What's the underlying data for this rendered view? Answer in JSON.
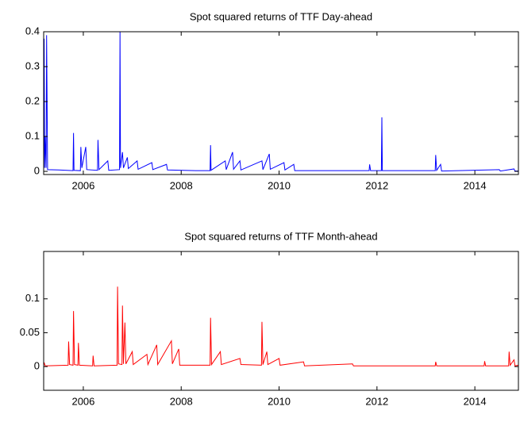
{
  "chart_data": [
    {
      "type": "line",
      "title": "Spot squared returns of TTF Day-ahead",
      "xlim": [
        2005.19,
        2014.89
      ],
      "xticks": [
        2006,
        2008,
        2010,
        2012,
        2014
      ],
      "ylim": [
        -0.009,
        0.4
      ],
      "yticks": [
        0,
        0.1,
        0.2,
        0.3,
        0.4
      ],
      "series": [
        {
          "color": "#0000ff",
          "x": [
            2005.19,
            2005.2,
            2005.21,
            2005.22,
            2005.24,
            2005.25,
            2005.27,
            2005.5,
            2005.79,
            2005.8,
            2005.81,
            2005.94,
            2005.95,
            2005.97,
            2006.05,
            2006.07,
            2006.29,
            2006.3,
            2006.32,
            2006.5,
            2006.52,
            2006.74,
            2006.75,
            2006.76,
            2006.8,
            2006.82,
            2006.9,
            2006.92,
            2007.1,
            2007.12,
            2007.4,
            2007.42,
            2007.7,
            2007.72,
            2008.3,
            2008.59,
            2008.6,
            2008.61,
            2008.9,
            2008.92,
            2009.05,
            2009.07,
            2009.2,
            2009.22,
            2009.65,
            2009.67,
            2009.8,
            2009.82,
            2010.1,
            2010.12,
            2010.3,
            2010.32,
            2011.84,
            2011.85,
            2011.87,
            2012.09,
            2012.1,
            2012.11,
            2013.19,
            2013.2,
            2013.22,
            2013.3,
            2013.32,
            2014.5,
            2014.52,
            2014.8,
            2014.82,
            2014.89
          ],
          "values": [
            0.002,
            0.38,
            0.01,
            0.1,
            0.01,
            0.39,
            0.005,
            0.004,
            0.002,
            0.11,
            0.003,
            0.002,
            0.07,
            0.01,
            0.07,
            0.005,
            0.003,
            0.09,
            0.005,
            0.03,
            0.003,
            0.005,
            0.4,
            0.01,
            0.055,
            0.01,
            0.04,
            0.008,
            0.03,
            0.006,
            0.025,
            0.005,
            0.02,
            0.004,
            0.002,
            0.002,
            0.075,
            0.003,
            0.03,
            0.005,
            0.055,
            0.006,
            0.03,
            0.004,
            0.03,
            0.005,
            0.05,
            0.006,
            0.025,
            0.004,
            0.02,
            0.002,
            0.002,
            0.02,
            0.002,
            0.002,
            0.155,
            0.002,
            0.002,
            0.047,
            0.003,
            0.02,
            0.001,
            0.005,
            0.001,
            0.007,
            0.001,
            0.001
          ]
        }
      ]
    },
    {
      "type": "line",
      "title": "Spot squared returns of TTF Month-ahead",
      "xlim": [
        2005.19,
        2014.89
      ],
      "xticks": [
        2006,
        2008,
        2010,
        2012,
        2014
      ],
      "ylim": [
        -0.035,
        0.17
      ],
      "yticks": [
        0,
        0.05,
        0.1
      ],
      "series": [
        {
          "color": "#ff0000",
          "x": [
            2005.19,
            2005.2,
            2005.22,
            2005.69,
            2005.7,
            2005.72,
            2005.79,
            2005.8,
            2005.82,
            2005.89,
            2005.9,
            2005.92,
            2006.19,
            2006.2,
            2006.22,
            2006.69,
            2006.7,
            2006.72,
            2006.79,
            2006.8,
            2006.82,
            2006.85,
            2006.87,
            2007.0,
            2007.02,
            2007.3,
            2007.32,
            2007.5,
            2007.52,
            2007.8,
            2007.82,
            2007.95,
            2007.97,
            2008.59,
            2008.6,
            2008.62,
            2008.8,
            2008.82,
            2009.2,
            2009.22,
            2009.64,
            2009.65,
            2009.67,
            2009.75,
            2009.77,
            2010.0,
            2010.02,
            2010.5,
            2010.52,
            2011.5,
            2011.52,
            2013.19,
            2013.2,
            2013.22,
            2014.19,
            2014.2,
            2014.22,
            2014.69,
            2014.7,
            2014.72,
            2014.8,
            2014.82,
            2014.89
          ],
          "values": [
            0.002,
            0.006,
            0.001,
            0.002,
            0.037,
            0.003,
            0.002,
            0.082,
            0.003,
            0.002,
            0.035,
            0.002,
            0.001,
            0.016,
            0.001,
            0.002,
            0.118,
            0.004,
            0.003,
            0.09,
            0.004,
            0.065,
            0.004,
            0.022,
            0.003,
            0.018,
            0.003,
            0.032,
            0.003,
            0.038,
            0.004,
            0.026,
            0.002,
            0.002,
            0.072,
            0.003,
            0.022,
            0.003,
            0.012,
            0.003,
            0.002,
            0.066,
            0.003,
            0.022,
            0.003,
            0.012,
            0.002,
            0.007,
            0.001,
            0.004,
            0.001,
            0.001,
            0.007,
            0.001,
            0.001,
            0.008,
            0.001,
            0.001,
            0.022,
            0.002,
            0.01,
            0.001,
            0.002
          ]
        }
      ]
    }
  ]
}
